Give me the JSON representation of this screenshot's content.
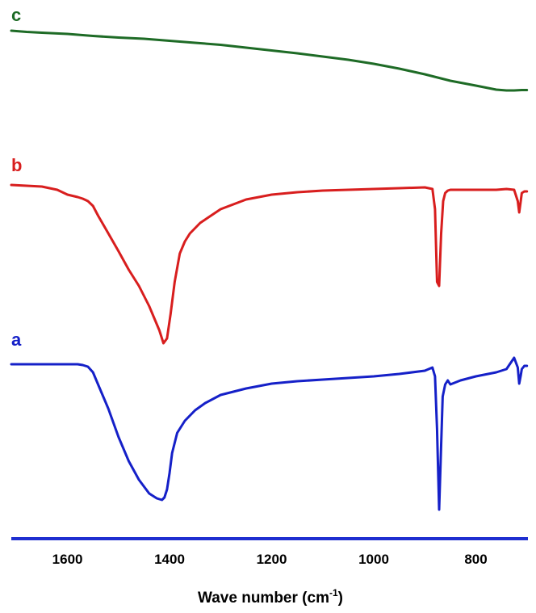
{
  "chart_data": {
    "type": "line",
    "title": "",
    "xlabel_main": "Wave number (cm",
    "xlabel_sup": "-1",
    "xlabel_close": ")",
    "ylabel": "",
    "x_reversed": true,
    "xlim": [
      1710,
      698
    ],
    "x_ticks": [
      1600,
      1400,
      1200,
      1000,
      800
    ],
    "x_tick_labels": [
      "1600",
      "1400",
      "1200",
      "1000",
      "800"
    ],
    "grid": false,
    "legend": "none",
    "axis_color": "#1f2fd0",
    "series": [
      {
        "label": "c",
        "color": "#1e6b26",
        "y_offset": 0.0,
        "x": [
          1710,
          1680,
          1650,
          1600,
          1550,
          1500,
          1450,
          1400,
          1350,
          1300,
          1250,
          1200,
          1150,
          1100,
          1050,
          1000,
          950,
          900,
          850,
          800,
          760,
          740,
          725,
          710,
          700
        ],
        "y": [
          0.0,
          1.5,
          2.5,
          4.0,
          6.5,
          8.5,
          10.0,
          12.5,
          15.0,
          17.5,
          21.0,
          24.5,
          28.0,
          32.0,
          36.0,
          41.0,
          47.0,
          54.0,
          62.0,
          68.0,
          73.0,
          74.0,
          74.0,
          73.5,
          73.5
        ]
      },
      {
        "label": "b",
        "color": "#d81e1e",
        "y_offset": 190.0,
        "x": [
          1710,
          1650,
          1620,
          1600,
          1580,
          1570,
          1560,
          1550,
          1540,
          1520,
          1500,
          1480,
          1460,
          1440,
          1430,
          1420,
          1412,
          1405,
          1398,
          1390,
          1380,
          1370,
          1360,
          1340,
          1300,
          1250,
          1200,
          1150,
          1100,
          1050,
          1000,
          950,
          900,
          885,
          880,
          876,
          872,
          868,
          864,
          860,
          855,
          850,
          800,
          760,
          740,
          725,
          718,
          715,
          712,
          710,
          705,
          700
        ],
        "y": [
          0.0,
          2.0,
          6.0,
          12.0,
          15.0,
          17.0,
          20.0,
          26.0,
          38.0,
          60.0,
          82.0,
          105.0,
          125.0,
          150.0,
          165.0,
          180.0,
          196.0,
          190.0,
          160.0,
          120.0,
          85.0,
          70.0,
          60.0,
          47.0,
          30.0,
          18.0,
          12.0,
          9.0,
          7.0,
          6.0,
          5.0,
          4.0,
          3.0,
          5.0,
          30.0,
          120.0,
          125.0,
          60.0,
          20.0,
          10.0,
          7.0,
          6.0,
          6.0,
          6.0,
          5.0,
          6.0,
          20.0,
          34.0,
          20.0,
          10.0,
          8.0,
          8.0
        ]
      },
      {
        "label": "a",
        "color": "#1520c8",
        "y_offset": 410.0,
        "x": [
          1710,
          1650,
          1600,
          1580,
          1570,
          1560,
          1550,
          1540,
          1520,
          1500,
          1480,
          1460,
          1440,
          1425,
          1415,
          1410,
          1405,
          1400,
          1395,
          1385,
          1370,
          1350,
          1330,
          1300,
          1250,
          1200,
          1150,
          1100,
          1050,
          1000,
          950,
          900,
          885,
          880,
          876,
          872,
          868,
          865,
          860,
          855,
          850,
          830,
          800,
          760,
          740,
          725,
          718,
          715,
          712,
          710,
          705,
          700
        ],
        "y": [
          0.0,
          0.0,
          0.0,
          0.0,
          1.0,
          3.0,
          10.0,
          25.0,
          55.0,
          90.0,
          120.0,
          143.0,
          160.0,
          166.0,
          168.0,
          165.0,
          155.0,
          135.0,
          110.0,
          85.0,
          70.0,
          57.0,
          48.0,
          38.0,
          30.0,
          24.0,
          21.0,
          19.0,
          17.0,
          15.0,
          12.0,
          8.0,
          4.0,
          15.0,
          80.0,
          180.0,
          100.0,
          40.0,
          25.0,
          20.0,
          25.0,
          20.0,
          15.0,
          10.0,
          6.0,
          -8.0,
          4.0,
          24.0,
          14.0,
          6.0,
          2.0,
          2.0
        ]
      }
    ]
  }
}
